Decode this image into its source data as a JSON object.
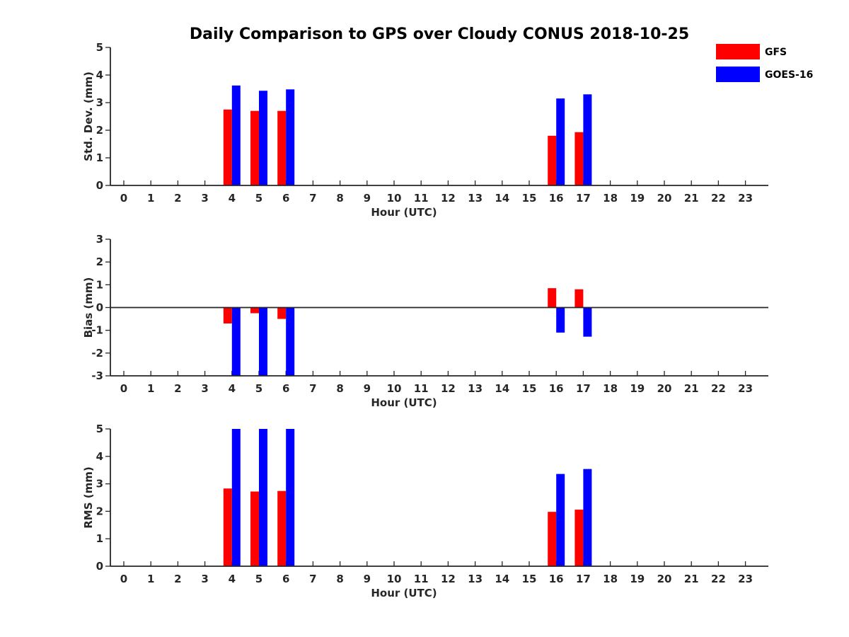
{
  "chart_data": {
    "title": "Daily Comparison to GPS over Cloudy CONUS 2018-10-25",
    "legend": {
      "placement": "top-right",
      "entries": [
        {
          "name": "GFS",
          "color": "#ff0000"
        },
        {
          "name": "GOES-16",
          "color": "#0000ff"
        }
      ]
    },
    "panels": [
      {
        "type": "bar",
        "xlabel": "Hour (UTC)",
        "ylabel": "Std. Dev. (mm)",
        "categories": [
          "0",
          "1",
          "2",
          "3",
          "4",
          "5",
          "6",
          "7",
          "8",
          "9",
          "10",
          "11",
          "12",
          "13",
          "14",
          "15",
          "16",
          "17",
          "18",
          "19",
          "20",
          "21",
          "22",
          "23"
        ],
        "ylim": [
          0,
          5
        ],
        "yticks": [
          "0",
          "1",
          "2",
          "3",
          "4",
          "5"
        ],
        "series": [
          {
            "name": "GFS",
            "color": "#ff0000",
            "values": [
              null,
              null,
              null,
              null,
              2.75,
              2.7,
              2.7,
              null,
              null,
              null,
              null,
              null,
              null,
              null,
              null,
              null,
              1.8,
              1.93,
              null,
              null,
              null,
              null,
              null,
              null
            ]
          },
          {
            "name": "GOES-16",
            "color": "#0000ff",
            "values": [
              null,
              null,
              null,
              null,
              3.62,
              3.43,
              3.48,
              null,
              null,
              null,
              null,
              null,
              null,
              null,
              null,
              null,
              3.15,
              3.3,
              null,
              null,
              null,
              null,
              null,
              null
            ]
          }
        ]
      },
      {
        "type": "bar",
        "xlabel": "Hour (UTC)",
        "ylabel": "Bias (mm)",
        "categories": [
          "0",
          "1",
          "2",
          "3",
          "4",
          "5",
          "6",
          "7",
          "8",
          "9",
          "10",
          "11",
          "12",
          "13",
          "14",
          "15",
          "16",
          "17",
          "18",
          "19",
          "20",
          "21",
          "22",
          "23"
        ],
        "ylim": [
          -3,
          3
        ],
        "yticks": [
          "-3",
          "-2",
          "-1",
          "0",
          "1",
          "2",
          "3"
        ],
        "zero_line": true,
        "series": [
          {
            "name": "GFS",
            "color": "#ff0000",
            "values": [
              null,
              null,
              null,
              null,
              -0.7,
              -0.25,
              -0.5,
              null,
              null,
              null,
              null,
              null,
              null,
              null,
              null,
              null,
              0.85,
              0.8,
              null,
              null,
              null,
              null,
              null,
              null
            ]
          },
          {
            "name": "GOES-16",
            "color": "#0000ff",
            "values": [
              null,
              null,
              null,
              null,
              -3,
              -3,
              -3,
              null,
              null,
              null,
              null,
              null,
              null,
              null,
              null,
              null,
              -1.1,
              -1.28,
              null,
              null,
              null,
              null,
              null,
              null
            ]
          }
        ]
      },
      {
        "type": "bar",
        "xlabel": "Hour (UTC)",
        "ylabel": "RMS (mm)",
        "categories": [
          "0",
          "1",
          "2",
          "3",
          "4",
          "5",
          "6",
          "7",
          "8",
          "9",
          "10",
          "11",
          "12",
          "13",
          "14",
          "15",
          "16",
          "17",
          "18",
          "19",
          "20",
          "21",
          "22",
          "23"
        ],
        "ylim": [
          0,
          5
        ],
        "yticks": [
          "0",
          "1",
          "2",
          "3",
          "4",
          "5"
        ],
        "series": [
          {
            "name": "GFS",
            "color": "#ff0000",
            "values": [
              null,
              null,
              null,
              null,
              2.83,
              2.72,
              2.74,
              null,
              null,
              null,
              null,
              null,
              null,
              null,
              null,
              null,
              1.98,
              2.06,
              null,
              null,
              null,
              null,
              null,
              null
            ]
          },
          {
            "name": "GOES-16",
            "color": "#0000ff",
            "values": [
              null,
              null,
              null,
              null,
              5,
              5,
              5,
              null,
              null,
              null,
              null,
              null,
              null,
              null,
              null,
              null,
              3.36,
              3.54,
              null,
              null,
              null,
              null,
              null,
              null
            ]
          }
        ]
      }
    ]
  }
}
